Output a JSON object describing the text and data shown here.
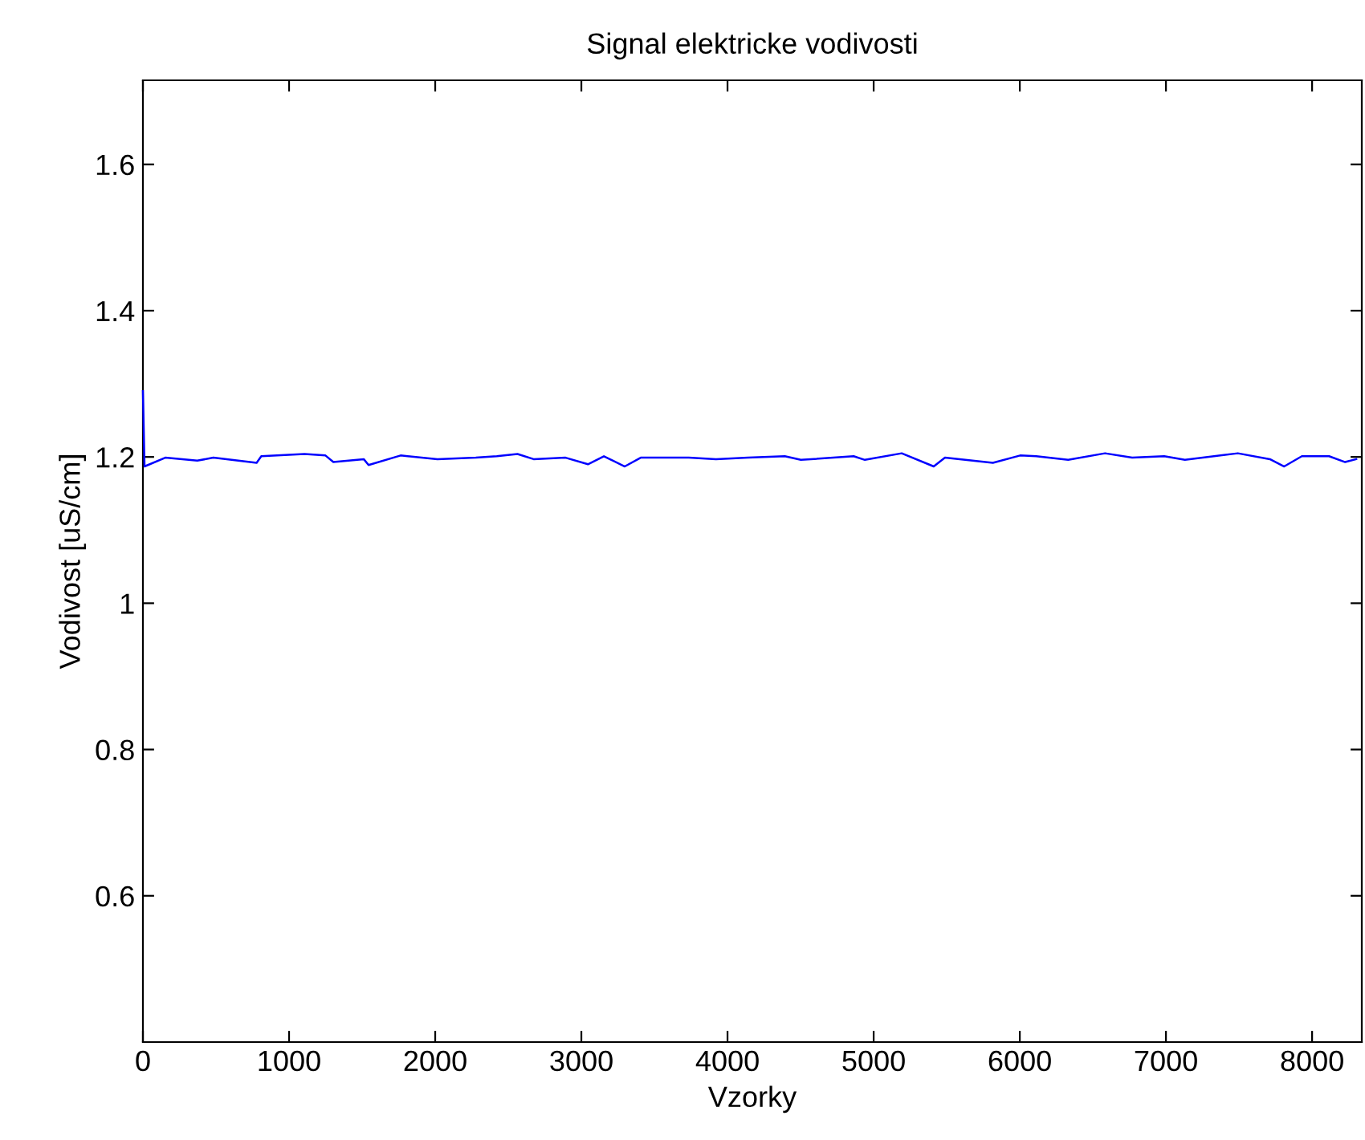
{
  "chart_data": {
    "type": "line",
    "title": "Signal elektricke vodivosti",
    "xlabel": "Vzorky",
    "ylabel": "Vodivost [uS/cm]",
    "xlim": [
      0,
      8340
    ],
    "ylim": [
      0.4,
      1.715
    ],
    "xticks": [
      0,
      1000,
      2000,
      3000,
      4000,
      5000,
      6000,
      7000,
      8000
    ],
    "yticks": [
      0.6,
      0.8,
      1,
      1.2,
      1.4,
      1.6
    ],
    "grid": false,
    "marker": "none",
    "line_style": "solid",
    "series": [
      {
        "color": "#0000ff",
        "x": [
          0,
          11,
          153,
          372,
          482,
          778,
          810,
          1106,
          1249,
          1303,
          1511,
          1544,
          1763,
          2015,
          2278,
          2421,
          2563,
          2673,
          2892,
          3045,
          3154,
          3297,
          3406,
          3735,
          3921,
          4140,
          4392,
          4502,
          4863,
          4940,
          5192,
          5411,
          5488,
          5816,
          6002,
          6112,
          6331,
          6583,
          6769,
          6988,
          7130,
          7492,
          7711,
          7809,
          7930,
          8116,
          8226,
          8302
        ],
        "values": [
          1.29,
          1.187,
          1.199,
          1.195,
          1.199,
          1.192,
          1.201,
          1.204,
          1.202,
          1.193,
          1.197,
          1.189,
          1.202,
          1.197,
          1.199,
          1.201,
          1.204,
          1.197,
          1.199,
          1.19,
          1.201,
          1.187,
          1.199,
          1.199,
          1.197,
          1.199,
          1.201,
          1.196,
          1.201,
          1.196,
          1.205,
          1.187,
          1.199,
          1.192,
          1.202,
          1.201,
          1.196,
          1.205,
          1.199,
          1.201,
          1.196,
          1.205,
          1.197,
          1.187,
          1.201,
          1.201,
          1.193,
          1.197
        ]
      }
    ]
  }
}
